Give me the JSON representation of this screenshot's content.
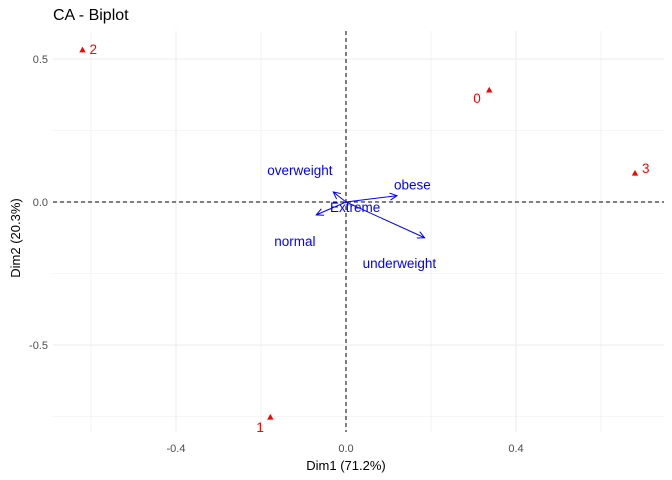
{
  "chart_data": {
    "type": "scatter",
    "title": "CA - Biplot",
    "xlabel": "Dim1 (71.2%)",
    "ylabel": "Dim2 (20.3%)",
    "xlim": [
      -0.63,
      0.68
    ],
    "ylim": [
      -0.8,
      0.6
    ],
    "x_ticks": [
      -0.4,
      0.0,
      0.4
    ],
    "x_tick_labels": [
      "-0.4",
      "0.0",
      "0.4"
    ],
    "y_ticks": [
      -0.5,
      0.0,
      0.5
    ],
    "y_tick_labels": [
      "-0.5",
      "0.0",
      "0.5"
    ],
    "grid": true,
    "reference_lines": {
      "x": 0,
      "y": 0,
      "style": "dashed"
    },
    "series": [
      {
        "kind": "row-points",
        "color": "#ff0000",
        "marker": "triangle",
        "points": [
          {
            "label": "0",
            "x": 0.337,
            "y": 0.392
          },
          {
            "label": "1",
            "x": -0.178,
            "y": -0.752
          },
          {
            "label": "2",
            "x": -0.62,
            "y": 0.532
          },
          {
            "label": "3",
            "x": 0.68,
            "y": 0.101
          }
        ]
      },
      {
        "kind": "column-arrows",
        "color": "#0000ff",
        "marker": "arrow",
        "points": [
          {
            "label": "overweight",
            "x": -0.03,
            "y": 0.035
          },
          {
            "label": "obese",
            "x": 0.12,
            "y": 0.022
          },
          {
            "label": "Extreme",
            "x": 0.0,
            "y": 0.0
          },
          {
            "label": "normal",
            "x": -0.07,
            "y": -0.045
          },
          {
            "label": "underweight",
            "x": 0.185,
            "y": -0.125
          }
        ]
      }
    ]
  }
}
